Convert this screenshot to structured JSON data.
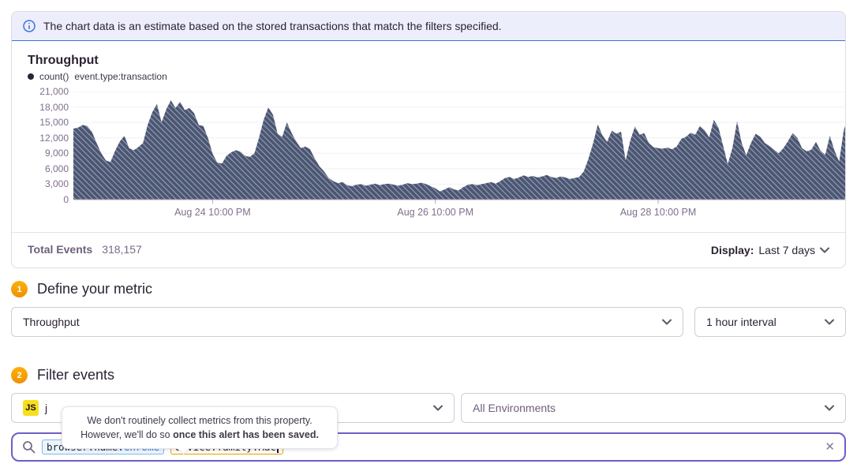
{
  "banner": {
    "text": "The chart data is an estimate based on the stored transactions that match the filters specified."
  },
  "chart_data": {
    "type": "area",
    "title": "Throughput",
    "legend": {
      "series_label": "count()",
      "series_filter": "event.type:transaction"
    },
    "ylim": [
      0,
      21000
    ],
    "y_ticks": [
      0,
      3000,
      6000,
      9000,
      12000,
      15000,
      18000,
      21000
    ],
    "x_tick_labels": [
      "Aug 24 10:00 PM",
      "Aug 26 10:00 PM",
      "Aug 28 10:00 PM"
    ],
    "x_tick_indices": [
      30,
      78,
      126
    ],
    "grid": "horizontal",
    "legend_position": "top-left",
    "fill_color": "#4a5673",
    "hatch_color": "rgba(255,255,255,0.42)",
    "axis_line_color": "#b3a6c0",
    "grid_color": "#f2eff4",
    "values": [
      13800,
      14000,
      14500,
      14300,
      13200,
      11000,
      9000,
      7600,
      7300,
      9500,
      11300,
      12400,
      10000,
      9600,
      10200,
      11000,
      14500,
      17000,
      18600,
      15000,
      17500,
      19300,
      17800,
      19000,
      17400,
      17800,
      16800,
      14500,
      14300,
      12000,
      8900,
      7200,
      7000,
      8500,
      9200,
      9600,
      9300,
      8500,
      8300,
      9000,
      12000,
      15500,
      17900,
      16500,
      12800,
      12200,
      15000,
      13000,
      11300,
      10000,
      10300,
      9800,
      8000,
      6500,
      5500,
      4200,
      3600,
      3200,
      3400,
      2800,
      2600,
      2900,
      3000,
      2700,
      2900,
      3100,
      2800,
      3000,
      3100,
      2900,
      2700,
      2900,
      3200,
      3000,
      3100,
      3300,
      3000,
      2600,
      2200,
      1600,
      2000,
      2400,
      2000,
      1800,
      2400,
      2900,
      3000,
      2800,
      3000,
      3200,
      3400,
      3100,
      3600,
      4200,
      4400,
      4000,
      4300,
      4700,
      4400,
      4600,
      4300,
      4500,
      4800,
      4400,
      4200,
      4500,
      4300,
      4000,
      4200,
      4400,
      5500,
      8000,
      11000,
      14600,
      12500,
      11200,
      13400,
      12800,
      13200,
      7600,
      11500,
      14200,
      12600,
      12900,
      11000,
      10200,
      10000,
      9900,
      10100,
      9800,
      10300,
      11800,
      12200,
      13000,
      12600,
      14300,
      13500,
      12100,
      15500,
      14000,
      10500,
      6900,
      10000,
      15200,
      11000,
      8600,
      11000,
      12800,
      12200,
      11000,
      10400,
      9700,
      9000,
      10000,
      11400,
      12900,
      12000,
      10000,
      9400,
      9700,
      11200,
      9500,
      8700,
      12400,
      9500,
      7400,
      13500,
      16000,
      14700
    ]
  },
  "footer": {
    "total_events_label": "Total Events",
    "total_events_value": "318,157",
    "display_label": "Display:",
    "display_value": "Last 7 days"
  },
  "sections": {
    "define_metric": {
      "number": "1",
      "title": "Define your metric",
      "metric_value": "Throughput",
      "interval_value": "1 hour interval"
    },
    "filter_events": {
      "number": "2",
      "title": "Filter events",
      "project_badge": "JS",
      "project_name_partial": "j",
      "environment_value": "All Environments"
    }
  },
  "tooltip": {
    "line1": "We don't routinely collect metrics from this property.",
    "line2_normal": "However, we'll do so",
    "line2_bold": "once this alert has been saved."
  },
  "search": {
    "tokens": [
      {
        "key": "browser.name:",
        "value": "Chrome"
      },
      {
        "key": "device.family:",
        "value": "Mac"
      }
    ]
  },
  "colors": {
    "accent_purple": "#6c5fc7",
    "banner_blue": "#3d74db",
    "banner_bg": "#edeefb",
    "step_orange": "#f1a104",
    "js_yellow": "#f7df1e",
    "token_blue_border": "#83b7e8",
    "token_amber_border": "#e2a301",
    "chart_fill": "#4a5673"
  }
}
